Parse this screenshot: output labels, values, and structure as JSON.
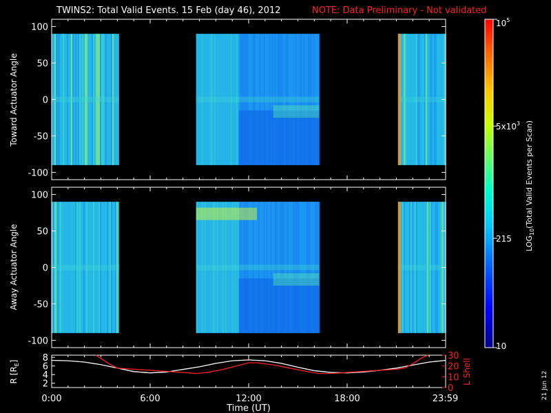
{
  "title": {
    "main": "TWINS2: Total Valid Events. 15 Feb (day  46), 2012",
    "note": "NOTE: Data Preliminary - Not validated"
  },
  "colors": {
    "background": "#000000",
    "axis": "#ffffff",
    "note": "#ff2020",
    "lshell": "#ff2020",
    "radius": "#ffffff"
  },
  "stamp": "21 Jun 12",
  "chart_data": [
    {
      "type": "heatmap",
      "ylabel": "Toward Actuator Angle",
      "ylim": [
        -110,
        110
      ],
      "yticks": [
        "100",
        "50",
        "0",
        "-50",
        "-100"
      ],
      "yticks_values": [
        100,
        50,
        0,
        -50,
        -100
      ],
      "xlim_hours": [
        0,
        24
      ],
      "data_row_range": [
        -90,
        90
      ],
      "intervals_hours": [
        [
          0.0,
          4.1
        ],
        [
          8.8,
          16.3
        ],
        [
          21.1,
          24.0
        ]
      ],
      "grid": false
    },
    {
      "type": "heatmap",
      "ylabel": "Away Actuator Angle",
      "ylim": [
        -110,
        110
      ],
      "yticks": [
        "100",
        "50",
        "0",
        "-50",
        "-100"
      ],
      "yticks_values": [
        100,
        50,
        0,
        -50,
        -100
      ],
      "xlim_hours": [
        0,
        24
      ],
      "data_row_range": [
        -90,
        90
      ],
      "intervals_hours": [
        [
          0.0,
          4.1
        ],
        [
          8.8,
          16.3
        ],
        [
          21.1,
          24.0
        ]
      ],
      "grid": false
    },
    {
      "type": "line",
      "ylabel_left": "R [R",
      "ylabel_left_sub": "E",
      "ylabel_left_end": "]",
      "ylabel_right": "L Shell",
      "xlabel": "Time (UT)",
      "xticks": [
        "0:00",
        "6:00",
        "12:00",
        "18:00",
        "23:59"
      ],
      "xticks_hours": [
        0,
        6,
        12,
        18,
        23.98
      ],
      "left_yticks": [
        "8",
        "6",
        "4",
        "2"
      ],
      "left_ylim": [
        1,
        8.5
      ],
      "right_yticks": [
        "30",
        "20",
        "10",
        "0"
      ],
      "right_ylim": [
        0,
        30
      ],
      "series": [
        {
          "color": "#ffffff",
          "x": [
            0,
            1,
            2,
            3,
            4,
            5,
            6,
            7,
            8,
            9,
            10,
            11,
            12,
            13,
            14,
            15,
            16,
            17,
            18,
            19,
            20,
            21,
            22,
            23,
            24
          ],
          "y": [
            7.3,
            7.2,
            6.9,
            6.3,
            5.5,
            4.7,
            4.4,
            4.6,
            5.2,
            5.8,
            6.6,
            7.2,
            7.4,
            7.2,
            6.6,
            5.7,
            4.9,
            4.5,
            4.4,
            4.6,
            5.0,
            5.5,
            6.2,
            6.9,
            7.3
          ]
        },
        {
          "color": "#ff2020",
          "x": [
            2.7,
            3.0,
            3.5,
            4.0,
            5.0,
            6.0,
            7.0,
            8.0,
            8.8,
            9.5,
            10.5,
            11.5,
            12.0,
            12.5,
            13.5,
            14.5,
            15.5,
            16.3,
            17.0,
            18.0,
            19.0,
            20.0,
            21.0,
            21.5,
            22.0,
            22.5,
            22.9
          ],
          "y": [
            31,
            27,
            22,
            18,
            17,
            16,
            15,
            14,
            13,
            14,
            17,
            21,
            23,
            23,
            21,
            18,
            15,
            13,
            13,
            14,
            15,
            16,
            17,
            18,
            22,
            27,
            31
          ]
        }
      ]
    }
  ],
  "colorbar": {
    "ticks": [
      "10",
      "215",
      "5x10",
      "10"
    ],
    "tick_superscripts": [
      "",
      "",
      "3",
      "5"
    ],
    "label": "LOG",
    "label_sub": "10",
    "label_end": "(Total Valid Events per Scan)",
    "range": [
      10,
      100000
    ],
    "colors": [
      "#00008a",
      "#0000ff",
      "#0064ff",
      "#00c8ff",
      "#00ffc8",
      "#64ff64",
      "#c8ff00",
      "#ffc800",
      "#ff6400",
      "#ff0000"
    ]
  }
}
